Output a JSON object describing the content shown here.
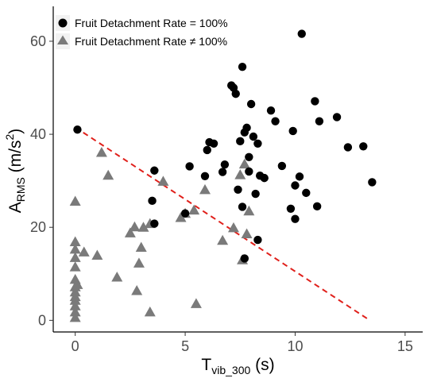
{
  "chart_data": {
    "type": "scatter",
    "xlabel": {
      "main": "T",
      "sub": "vib_300",
      "unit": " (s)"
    },
    "ylabel": {
      "main": "A",
      "sub": "RMS",
      "unit_open": " (m/s",
      "sup": "2",
      "unit_close": ")"
    },
    "xlim": [
      -1,
      15.8
    ],
    "ylim": [
      -2.5,
      67.5
    ],
    "xticks": [
      0,
      5,
      10,
      15
    ],
    "yticks": [
      0,
      20,
      40,
      60
    ],
    "grid": false,
    "legend_position": "top-left",
    "series": [
      {
        "name": "Fruit Detachment Rate = 100%",
        "marker": "circle",
        "color": "#000000",
        "points": [
          [
            0.1,
            41
          ],
          [
            3.6,
            32.2
          ],
          [
            3.5,
            25.7
          ],
          [
            3.6,
            20.8
          ],
          [
            5.0,
            23.0
          ],
          [
            5.2,
            33.1
          ],
          [
            5.9,
            31.0
          ],
          [
            6.0,
            36.6
          ],
          [
            6.1,
            38.3
          ],
          [
            6.3,
            38.0
          ],
          [
            6.7,
            31.9
          ],
          [
            6.8,
            33.5
          ],
          [
            7.1,
            50.5
          ],
          [
            7.2,
            50.0
          ],
          [
            7.3,
            48.7
          ],
          [
            7.4,
            28.1
          ],
          [
            7.5,
            38.5
          ],
          [
            7.6,
            24.4
          ],
          [
            7.6,
            54.5
          ],
          [
            7.7,
            40.4
          ],
          [
            7.7,
            13.3
          ],
          [
            7.8,
            41.4
          ],
          [
            7.9,
            35.1
          ],
          [
            7.9,
            32.0
          ],
          [
            8.0,
            46.5
          ],
          [
            8.1,
            39.5
          ],
          [
            8.2,
            27.2
          ],
          [
            8.3,
            38.0
          ],
          [
            8.3,
            17.3
          ],
          [
            8.4,
            31.1
          ],
          [
            8.6,
            30.6
          ],
          [
            8.9,
            45.1
          ],
          [
            9.1,
            42.8
          ],
          [
            9.4,
            33.2
          ],
          [
            9.8,
            24.0
          ],
          [
            9.9,
            40.7
          ],
          [
            10.0,
            29.0
          ],
          [
            10.0,
            21.8
          ],
          [
            10.2,
            30.9
          ],
          [
            10.3,
            61.6
          ],
          [
            10.5,
            27.4
          ],
          [
            10.9,
            47.1
          ],
          [
            11.0,
            24.5
          ],
          [
            11.1,
            42.8
          ],
          [
            11.9,
            43.7
          ],
          [
            12.4,
            37.2
          ],
          [
            13.1,
            37.4
          ],
          [
            13.5,
            29.7
          ]
        ]
      },
      {
        "name": "Fruit Detachment Rate ≠ 100%",
        "marker": "triangle",
        "color": "#7a7a7a",
        "points": [
          [
            0.0,
            25.5
          ],
          [
            0.0,
            16.8
          ],
          [
            0.0,
            15.2
          ],
          [
            0.0,
            13.4
          ],
          [
            0.0,
            11.4
          ],
          [
            0.0,
            8.7
          ],
          [
            0.0,
            7.1
          ],
          [
            0.0,
            6.0
          ],
          [
            0.0,
            5.0
          ],
          [
            0.0,
            4.2
          ],
          [
            0.0,
            3.0
          ],
          [
            0.0,
            1.7
          ],
          [
            0.0,
            0.5
          ],
          [
            0.1,
            7.6
          ],
          [
            0.4,
            14.6
          ],
          [
            1.0,
            13.9
          ],
          [
            1.2,
            36.0
          ],
          [
            1.5,
            31.1
          ],
          [
            1.9,
            9.2
          ],
          [
            2.5,
            18.7
          ],
          [
            2.7,
            20.0
          ],
          [
            2.8,
            6.3
          ],
          [
            2.9,
            12.2
          ],
          [
            3.0,
            15.6
          ],
          [
            3.1,
            19.9
          ],
          [
            3.4,
            20.7
          ],
          [
            3.4,
            1.7
          ],
          [
            4.0,
            29.8
          ],
          [
            4.8,
            22.0
          ],
          [
            5.0,
            22.9
          ],
          [
            5.4,
            23.6
          ],
          [
            5.5,
            3.5
          ],
          [
            5.9,
            28.0
          ],
          [
            6.7,
            17.1
          ],
          [
            7.2,
            19.8
          ],
          [
            7.5,
            31.2
          ],
          [
            7.6,
            12.9
          ],
          [
            7.7,
            33.5
          ],
          [
            7.8,
            18.5
          ],
          [
            7.9,
            23.4
          ]
        ]
      }
    ],
    "trend_line": {
      "style": "dashed",
      "color": "#e0201b",
      "from": [
        0.0,
        41.5
      ],
      "to": [
        13.3,
        0.3
      ]
    }
  }
}
